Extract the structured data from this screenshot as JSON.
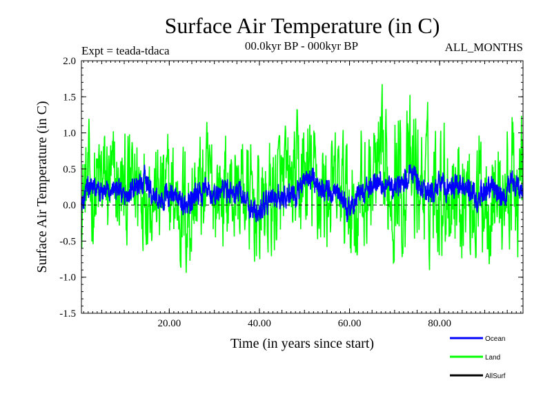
{
  "chart_data": {
    "type": "line",
    "title": "Surface Air Temperature (in C)",
    "subtitle_left": "Expt = teada-tdaca",
    "subtitle_center": "00.0kyr BP - 000kyr BP",
    "subtitle_right": "ALL_MONTHS",
    "xlabel": "Time (in years since start)",
    "ylabel": "Surface Air Temperature (in C)",
    "xlim": [
      0.5,
      98.5
    ],
    "ylim": [
      -1.5,
      2.0
    ],
    "x_ticks": [
      20,
      40,
      60,
      80
    ],
    "x_tick_labels": [
      "20.00",
      "40.00",
      "60.00",
      "80.00"
    ],
    "y_ticks": [
      -1.5,
      -1.0,
      -0.5,
      0.0,
      0.5,
      1.0,
      1.5,
      2.0
    ],
    "y_tick_labels": [
      "-1.5",
      "-1.0",
      "-0.5",
      "0.0",
      "0.5",
      "1.0",
      "1.5",
      "2.0"
    ],
    "reference_line": {
      "y": 0.0,
      "style": "dashed"
    },
    "legend_position": "bottom-right",
    "series": [
      {
        "name": "Land",
        "color": "#00ff00",
        "x": [
          0.5,
          2,
          4,
          6,
          8,
          10,
          12,
          14,
          16,
          18,
          20,
          22,
          24,
          26,
          28,
          30,
          32,
          34,
          36,
          38,
          40,
          42,
          44,
          46,
          48,
          50,
          52,
          54,
          56,
          58,
          60,
          62,
          64,
          66,
          68,
          70,
          72,
          74,
          76,
          78,
          80,
          82,
          84,
          86,
          88,
          90,
          92,
          94,
          96,
          98.5
        ],
        "values": [
          0.15,
          0.25,
          0.2,
          0.3,
          0.2,
          0.15,
          0.25,
          0.4,
          0.2,
          0.1,
          0.15,
          0.05,
          -0.1,
          0.15,
          0.2,
          0.25,
          0.2,
          0.15,
          0.25,
          0.0,
          -0.1,
          0.05,
          0.15,
          0.2,
          0.25,
          0.35,
          0.3,
          0.2,
          0.15,
          0.2,
          0.1,
          0.0,
          0.25,
          0.35,
          0.3,
          0.45,
          0.3,
          0.4,
          0.3,
          0.2,
          0.35,
          0.3,
          0.25,
          0.2,
          0.1,
          0.25,
          0.2,
          0.1,
          0.3,
          0.25
        ],
        "amplitude": [
          0.5,
          0.6,
          0.7,
          0.65,
          0.6,
          0.6,
          0.65,
          0.7,
          0.55,
          0.6,
          0.6,
          0.65,
          0.75,
          0.6,
          0.65,
          0.6,
          0.6,
          0.6,
          0.65,
          0.6,
          0.6,
          0.65,
          0.7,
          0.6,
          0.65,
          0.75,
          0.7,
          0.65,
          0.6,
          0.6,
          0.65,
          0.7,
          0.7,
          0.7,
          0.75,
          0.85,
          0.75,
          0.8,
          0.7,
          0.7,
          0.7,
          0.75,
          0.7,
          0.65,
          0.7,
          0.7,
          0.7,
          0.7,
          0.75,
          0.8
        ]
      },
      {
        "name": "Ocean",
        "color": "#0000ff",
        "x": [
          0.5,
          2,
          4,
          6,
          8,
          10,
          12,
          14,
          15,
          16,
          18,
          20,
          22,
          24,
          26,
          28,
          30,
          32,
          34,
          36,
          38,
          40,
          42,
          44,
          46,
          48,
          50,
          52,
          54,
          56,
          58,
          60,
          62,
          64,
          66,
          68,
          70,
          72,
          74,
          76,
          78,
          80,
          82,
          84,
          86,
          88,
          90,
          92,
          94,
          96,
          98.5
        ],
        "values": [
          0.0,
          0.25,
          0.2,
          0.15,
          0.25,
          0.1,
          0.2,
          0.3,
          0.35,
          0.15,
          0.05,
          0.15,
          0.1,
          -0.05,
          0.15,
          0.2,
          0.1,
          0.25,
          0.15,
          0.2,
          -0.05,
          -0.1,
          0.05,
          0.1,
          0.15,
          0.1,
          0.4,
          0.35,
          0.25,
          0.15,
          0.1,
          -0.05,
          0.15,
          0.2,
          0.35,
          0.3,
          0.2,
          0.35,
          0.4,
          0.2,
          0.15,
          0.35,
          0.2,
          0.3,
          0.25,
          0.1,
          0.2,
          0.25,
          0.1,
          0.3,
          0.2
        ],
        "amplitude": [
          0.12,
          0.12,
          0.12,
          0.12,
          0.12,
          0.12,
          0.12,
          0.12,
          0.15,
          0.12,
          0.12,
          0.12,
          0.12,
          0.13,
          0.12,
          0.12,
          0.12,
          0.12,
          0.12,
          0.12,
          0.12,
          0.13,
          0.12,
          0.12,
          0.12,
          0.12,
          0.12,
          0.12,
          0.12,
          0.12,
          0.12,
          0.13,
          0.12,
          0.12,
          0.12,
          0.12,
          0.12,
          0.12,
          0.12,
          0.12,
          0.12,
          0.12,
          0.12,
          0.12,
          0.12,
          0.13,
          0.12,
          0.12,
          0.12,
          0.12,
          0.12
        ]
      },
      {
        "name": "AllSurf",
        "color": "#000000",
        "x": [],
        "values": []
      }
    ]
  }
}
